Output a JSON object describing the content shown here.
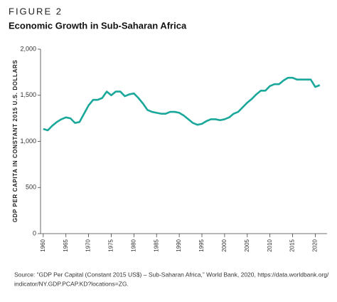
{
  "chart_data": {
    "type": "line",
    "figure_label": "FIGURE 2",
    "title": "Economic Growth in Sub-Saharan Africa",
    "y_label": "GDP PER CAPITA IN CONSTANT 2015 U.S. DOLLARS",
    "source": [
      "Source: “GDP Per Capital (Constant 2015 US$) – Sub-Saharan Africa,” World Bank, 2020, https://data.worldbank.org/",
      "indicator/NY.GDP.PCAP.KD?locations=ZG."
    ],
    "x": [
      1960,
      1961,
      1962,
      1963,
      1964,
      1965,
      1966,
      1967,
      1968,
      1969,
      1970,
      1971,
      1972,
      1973,
      1974,
      1975,
      1976,
      1977,
      1978,
      1979,
      1980,
      1981,
      1982,
      1983,
      1984,
      1985,
      1986,
      1987,
      1988,
      1989,
      1990,
      1991,
      1992,
      1993,
      1994,
      1995,
      1996,
      1997,
      1998,
      1999,
      2000,
      2001,
      2002,
      2003,
      2004,
      2005,
      2006,
      2007,
      2008,
      2009,
      2010,
      2011,
      2012,
      2013,
      2014,
      2015,
      2016,
      2017,
      2018,
      2019,
      2020,
      2021
    ],
    "series": [
      {
        "name": "GDP per capita",
        "color": "#1aa89a",
        "values": [
          1135,
          1120,
          1170,
          1210,
          1240,
          1260,
          1250,
          1200,
          1210,
          1300,
          1390,
          1450,
          1450,
          1470,
          1540,
          1500,
          1540,
          1540,
          1490,
          1510,
          1520,
          1470,
          1410,
          1340,
          1320,
          1310,
          1300,
          1300,
          1320,
          1320,
          1310,
          1280,
          1240,
          1200,
          1180,
          1190,
          1220,
          1240,
          1240,
          1230,
          1240,
          1260,
          1300,
          1320,
          1370,
          1420,
          1460,
          1510,
          1550,
          1550,
          1600,
          1620,
          1620,
          1660,
          1690,
          1690,
          1670,
          1670,
          1670,
          1670,
          1590,
          1610
        ]
      }
    ],
    "xlim": [
      1959.4,
      2022.6
    ],
    "xticks": [
      1960,
      1965,
      1970,
      1975,
      1980,
      1985,
      1990,
      1995,
      2000,
      2005,
      2010,
      2015,
      2020
    ],
    "ylim": [
      0,
      2000
    ],
    "yticks": [
      0,
      {
        "value": 500,
        "label": "500"
      },
      {
        "value": 1000,
        "label": "1,000"
      },
      {
        "value": 1500,
        "label": "1,500"
      },
      {
        "value": 2000,
        "label": "2,000"
      }
    ],
    "grid": false
  }
}
